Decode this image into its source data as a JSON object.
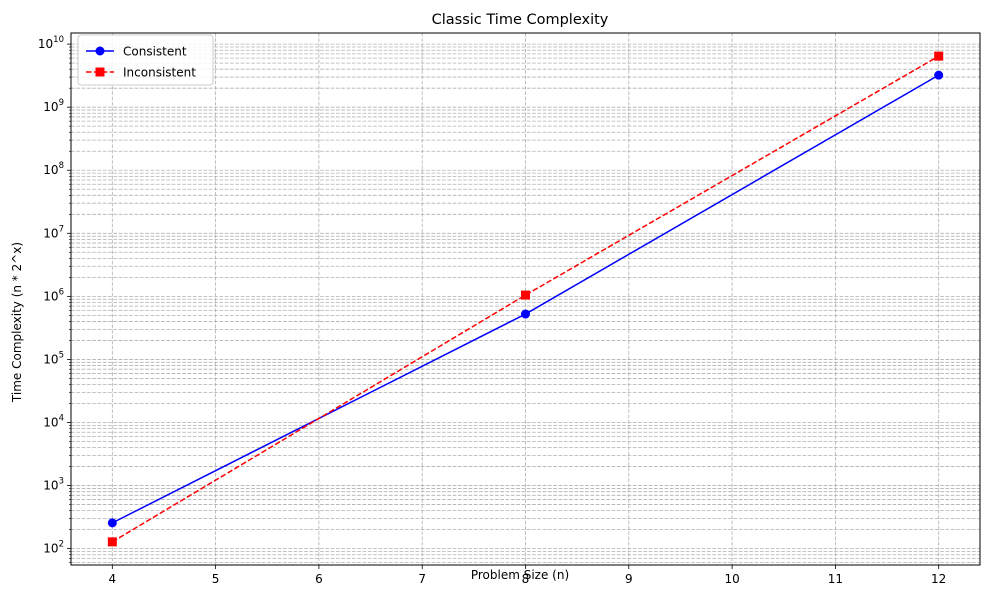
{
  "chart_data": {
    "type": "line",
    "title": "Classic Time Complexity",
    "xlabel": "Problem Size (n)",
    "ylabel": "Time Complexity (n * 2^x)",
    "xlim": [
      3.6,
      12.4
    ],
    "ylim": [
      55,
      15000000000
    ],
    "yscale": "log",
    "grid": true,
    "legend_position": "top-left",
    "x_ticks": [
      4,
      5,
      6,
      7,
      8,
      9,
      10,
      11,
      12
    ],
    "y_tick_exponents": [
      2,
      3,
      4,
      5,
      6,
      7,
      8,
      9,
      10
    ],
    "x": [
      4,
      8,
      12
    ],
    "series": [
      {
        "name": "Consistent",
        "values": [
          256,
          524288,
          3221225472
        ],
        "color": "#0000ff",
        "marker": "circle",
        "linestyle": "solid"
      },
      {
        "name": "Inconsistent",
        "values": [
          128,
          1048576,
          6442450944
        ],
        "color": "#ff0000",
        "marker": "square",
        "linestyle": "dashed"
      }
    ]
  }
}
